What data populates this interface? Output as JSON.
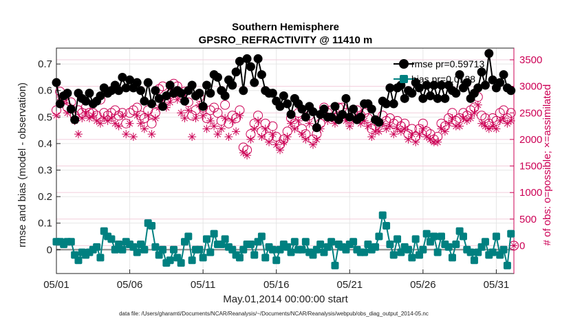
{
  "chart_data": {
    "type": "line",
    "title": [
      "Southern Hemisphere",
      "GPSRO_REFRACTIVITY @ 11410 m"
    ],
    "xlabel": "May.01,2014 00:00:00 start",
    "ylabel": "rmse and bias (model - observation)",
    "ylabel_right": "# of obs: o=possible; ×=assimilated",
    "xlim": [
      1,
      32.2
    ],
    "ylim": [
      -0.09,
      0.76
    ],
    "ylim_right": [
      -525,
      3720
    ],
    "x_ticks": [
      1,
      6,
      11,
      16,
      21,
      26,
      31
    ],
    "x_tick_labels": [
      "05/01",
      "05/06",
      "05/11",
      "05/16",
      "05/21",
      "05/26",
      "05/31"
    ],
    "y_ticks": [
      0,
      0.1,
      0.2,
      0.3,
      0.4,
      0.5,
      0.6,
      0.7
    ],
    "y_tick_labels": [
      "0",
      "0.1",
      "0.2",
      "0.3",
      "0.4",
      "0.5",
      "0.6",
      "0.7"
    ],
    "y2_ticks": [
      0,
      500,
      1000,
      1500,
      2000,
      2500,
      3000,
      3500
    ],
    "y2_tick_labels": [
      "0",
      "500",
      "1000",
      "1500",
      "2000",
      "2500",
      "3000",
      "3500"
    ],
    "grid": true,
    "legend": {
      "position": "top-right",
      "entries": [
        "rmse pr=0.59713",
        "bias pr=0.0128"
      ]
    },
    "colors": {
      "rmse": "#000000",
      "bias": "#008080",
      "obs": "#cc0055",
      "zero_line": "#999999"
    },
    "series": [
      {
        "name": "rmse pr=0.59713",
        "axis": "left",
        "x": [
          1.0,
          1.25,
          1.5,
          1.75,
          2.0,
          2.25,
          2.5,
          2.75,
          3.0,
          3.25,
          3.5,
          3.75,
          4.0,
          4.25,
          4.5,
          4.75,
          5.0,
          5.25,
          5.5,
          5.75,
          6.0,
          6.25,
          6.5,
          6.75,
          7.0,
          7.25,
          7.5,
          7.75,
          8.0,
          8.25,
          8.5,
          8.75,
          9.0,
          9.25,
          9.5,
          9.75,
          10.0,
          10.25,
          10.5,
          10.75,
          11.0,
          11.25,
          11.5,
          11.75,
          12.0,
          12.25,
          12.5,
          12.75,
          13.0,
          13.25,
          13.5,
          13.75,
          14.0,
          14.25,
          14.5,
          14.75,
          15.0,
          15.25,
          15.5,
          15.75,
          16.0,
          16.25,
          16.5,
          16.75,
          17.0,
          17.25,
          17.5,
          17.75,
          18.0,
          18.25,
          18.5,
          18.75,
          19.0,
          19.25,
          19.5,
          19.75,
          20.0,
          20.25,
          20.5,
          20.75,
          21.0,
          21.25,
          21.5,
          21.75,
          22.0,
          22.25,
          22.5,
          22.75,
          23.0,
          23.25,
          23.5,
          23.75,
          24.0,
          24.25,
          24.5,
          24.75,
          25.0,
          25.25,
          25.5,
          25.75,
          26.0,
          26.25,
          26.5,
          26.75,
          27.0,
          27.25,
          27.5,
          27.75,
          28.0,
          28.25,
          28.5,
          28.75,
          29.0,
          29.25,
          29.5,
          29.75,
          30.0,
          30.25,
          30.5,
          30.75,
          31.0,
          31.25,
          31.5,
          31.75,
          32.0
        ],
        "values": [
          0.63,
          0.55,
          0.58,
          0.59,
          0.53,
          0.49,
          0.59,
          0.57,
          0.56,
          0.59,
          0.55,
          0.56,
          0.58,
          0.61,
          0.59,
          0.6,
          0.62,
          0.6,
          0.65,
          0.61,
          0.64,
          0.61,
          0.63,
          0.6,
          0.56,
          0.63,
          0.55,
          0.6,
          0.57,
          0.54,
          0.58,
          0.62,
          0.59,
          0.6,
          0.59,
          0.56,
          0.6,
          0.62,
          0.58,
          0.59,
          0.54,
          0.62,
          0.59,
          0.66,
          0.65,
          0.6,
          0.58,
          0.64,
          0.62,
          0.67,
          0.71,
          0.6,
          0.72,
          0.69,
          0.63,
          0.72,
          0.66,
          0.6,
          0.59,
          0.59,
          0.56,
          0.54,
          0.58,
          0.55,
          0.51,
          0.57,
          0.55,
          0.53,
          0.5,
          0.54,
          0.52,
          0.46,
          0.51,
          0.53,
          0.5,
          0.5,
          0.54,
          0.49,
          0.51,
          0.57,
          0.5,
          0.53,
          0.49,
          0.5,
          0.55,
          0.55,
          0.53,
          0.49,
          0.48,
          0.56,
          0.55,
          0.61,
          0.55,
          0.61,
          0.62,
          0.57,
          0.6,
          0.59,
          0.63,
          0.61,
          0.57,
          0.62,
          0.58,
          0.62,
          0.57,
          0.62,
          0.57,
          0.62,
          0.6,
          0.59,
          0.66,
          0.61,
          0.63,
          0.57,
          0.59,
          0.61,
          0.67,
          0.62,
          0.74,
          0.64,
          0.61,
          0.63,
          0.66,
          0.61,
          0.6
        ]
      },
      {
        "name": "bias pr=0.0128",
        "axis": "left",
        "x": [
          1.0,
          1.25,
          1.5,
          1.75,
          2.0,
          2.25,
          2.5,
          2.75,
          3.0,
          3.25,
          3.5,
          3.75,
          4.0,
          4.25,
          4.5,
          4.75,
          5.0,
          5.25,
          5.5,
          5.75,
          6.0,
          6.25,
          6.5,
          6.75,
          7.0,
          7.25,
          7.5,
          7.75,
          8.0,
          8.25,
          8.5,
          8.75,
          9.0,
          9.25,
          9.5,
          9.75,
          10.0,
          10.25,
          10.5,
          10.75,
          11.0,
          11.25,
          11.5,
          11.75,
          12.0,
          12.25,
          12.5,
          12.75,
          13.0,
          13.25,
          13.5,
          13.75,
          14.0,
          14.25,
          14.5,
          14.75,
          15.0,
          15.25,
          15.5,
          15.75,
          16.0,
          16.25,
          16.5,
          16.75,
          17.0,
          17.25,
          17.5,
          17.75,
          18.0,
          18.25,
          18.5,
          18.75,
          19.0,
          19.25,
          19.5,
          19.75,
          20.0,
          20.25,
          20.5,
          20.75,
          21.0,
          21.25,
          21.5,
          21.75,
          22.0,
          22.25,
          22.5,
          22.75,
          23.0,
          23.25,
          23.5,
          23.75,
          24.0,
          24.25,
          24.5,
          24.75,
          25.0,
          25.25,
          25.5,
          25.75,
          26.0,
          26.25,
          26.5,
          26.75,
          27.0,
          27.25,
          27.5,
          27.75,
          28.0,
          28.25,
          28.5,
          28.75,
          29.0,
          29.25,
          29.5,
          29.75,
          30.0,
          30.25,
          30.5,
          30.75,
          31.0,
          31.25,
          31.5,
          31.75,
          32.0
        ],
        "values": [
          0.03,
          0.03,
          0.02,
          0.03,
          0.03,
          -0.02,
          -0.04,
          -0.01,
          -0.02,
          -0.01,
          0.0,
          0.01,
          -0.03,
          0.07,
          0.05,
          0.04,
          0.0,
          0.02,
          0.0,
          0.03,
          0.02,
          0.01,
          -0.01,
          0.02,
          0.0,
          0.1,
          0.09,
          0.01,
          -0.02,
          0.0,
          -0.05,
          -0.04,
          0.0,
          -0.03,
          -0.05,
          0.03,
          0.05,
          -0.04,
          0.0,
          0.0,
          -0.03,
          0.04,
          -0.01,
          0.06,
          0.02,
          0.02,
          0.04,
          0.01,
          0.0,
          -0.02,
          -0.03,
          0.0,
          0.02,
          0.02,
          -0.02,
          0.03,
          0.05,
          -0.03,
          0.01,
          0.0,
          -0.04,
          0.0,
          0.02,
          0.01,
          -0.01,
          0.03,
          0.0,
          0.0,
          0.03,
          -0.01,
          -0.02,
          0.0,
          0.02,
          -0.01,
          0.01,
          0.03,
          -0.06,
          0.02,
          0.01,
          0.0,
          0.02,
          0.03,
          0.0,
          -0.01,
          -0.01,
          0.02,
          0.0,
          0.01,
          0.05,
          0.13,
          0.09,
          0.02,
          -0.02,
          0.04,
          -0.01,
          0.01,
          0.0,
          -0.03,
          0.04,
          -0.02,
          0.0,
          0.06,
          0.03,
          0.05,
          -0.01,
          0.05,
          0.02,
          0.01,
          -0.03,
          0.02,
          0.07,
          0.05,
          0.0,
          -0.01,
          -0.04,
          -0.01,
          0.01,
          0.03,
          -0.02,
          -0.01,
          0.05,
          -0.02,
          0.0,
          -0.06,
          0.06
        ]
      },
      {
        "name": "possible",
        "axis": "right",
        "marker": "circle",
        "x": [
          1.0,
          1.25,
          1.5,
          1.75,
          2.0,
          2.25,
          2.5,
          2.75,
          3.0,
          3.25,
          3.5,
          3.75,
          4.0,
          4.25,
          4.5,
          4.75,
          5.0,
          5.25,
          5.5,
          5.75,
          6.0,
          6.25,
          6.5,
          6.75,
          7.0,
          7.25,
          7.5,
          7.75,
          8.0,
          8.25,
          8.5,
          8.75,
          9.0,
          9.25,
          9.5,
          9.75,
          10.0,
          10.25,
          10.5,
          10.75,
          11.0,
          11.25,
          11.5,
          11.75,
          12.0,
          12.25,
          12.5,
          12.75,
          13.0,
          13.25,
          13.5,
          13.75,
          14.0,
          14.25,
          14.5,
          14.75,
          15.0,
          15.25,
          15.5,
          15.75,
          16.0,
          16.25,
          16.5,
          16.75,
          17.0,
          17.25,
          17.5,
          17.75,
          18.0,
          18.25,
          18.5,
          18.75,
          19.0,
          19.25,
          19.5,
          19.75,
          20.0,
          20.25,
          20.5,
          20.75,
          21.0,
          21.25,
          21.5,
          21.75,
          22.0,
          22.25,
          22.5,
          22.75,
          23.0,
          23.25,
          23.5,
          23.75,
          24.0,
          24.25,
          24.5,
          24.75,
          25.0,
          25.25,
          25.5,
          25.75,
          26.0,
          26.25,
          26.5,
          26.75,
          27.0,
          27.25,
          27.5,
          27.75,
          28.0,
          28.25,
          28.5,
          28.75,
          29.0,
          29.25,
          29.5,
          29.75,
          30.0,
          30.25,
          30.5,
          30.75,
          31.0,
          31.25,
          31.5,
          31.75,
          32.0
        ],
        "values": [
          2550,
          2900,
          2800,
          2600,
          2700,
          2450,
          2550,
          2500,
          2600,
          2500,
          2500,
          2450,
          2750,
          2500,
          2450,
          2500,
          2550,
          2450,
          2500,
          2300,
          2500,
          2550,
          2600,
          2450,
          2400,
          2550,
          2300,
          2500,
          2950,
          3000,
          2750,
          2850,
          3050,
          3000,
          2850,
          2900,
          2700,
          2450,
          2550,
          2800,
          2600,
          2400,
          2550,
          2600,
          2500,
          2350,
          2650,
          2300,
          2450,
          2400,
          2550,
          1850,
          1800,
          2100,
          2300,
          2450,
          2150,
          2300,
          2050,
          2250,
          2050,
          1900,
          2000,
          2150,
          2400,
          2300,
          2500,
          2200,
          2100,
          2450,
          2000,
          2100,
          2300,
          2600,
          2500,
          2550,
          2400,
          2600,
          2600,
          2500,
          2400,
          2500,
          2550,
          2450,
          2500,
          2400,
          2200,
          2250,
          2300,
          2450,
          2350,
          2400,
          2300,
          2350,
          2250,
          2300,
          2100,
          2200,
          2050,
          2200,
          2300,
          2150,
          2100,
          2000,
          2050,
          2300,
          2250,
          2400,
          2500,
          2350,
          2400,
          2500,
          2450,
          2550,
          2600,
          2800,
          2450,
          2400,
          2300,
          2400,
          2350,
          2500,
          2550,
          2400,
          2500
        ]
      },
      {
        "name": "assimilated",
        "axis": "right",
        "marker": "asterisk",
        "x": [
          1.0,
          1.25,
          1.5,
          1.75,
          2.0,
          2.25,
          2.5,
          2.75,
          3.0,
          3.25,
          3.5,
          3.75,
          4.0,
          4.25,
          4.5,
          4.75,
          5.0,
          5.25,
          5.5,
          5.75,
          6.0,
          6.25,
          6.5,
          6.75,
          7.0,
          7.25,
          7.5,
          7.75,
          8.0,
          8.25,
          8.5,
          8.75,
          9.0,
          9.25,
          9.5,
          9.75,
          10.0,
          10.25,
          10.5,
          10.75,
          11.0,
          11.25,
          11.5,
          11.75,
          12.0,
          12.25,
          12.5,
          12.75,
          13.0,
          13.25,
          13.5,
          13.75,
          14.0,
          14.25,
          14.5,
          14.75,
          15.0,
          15.25,
          15.5,
          15.75,
          16.0,
          16.25,
          16.5,
          16.75,
          17.0,
          17.25,
          17.5,
          17.75,
          18.0,
          18.25,
          18.5,
          18.75,
          19.0,
          19.25,
          19.5,
          19.75,
          20.0,
          20.25,
          20.5,
          20.75,
          21.0,
          21.25,
          21.5,
          21.75,
          22.0,
          22.25,
          22.5,
          22.75,
          23.0,
          23.25,
          23.5,
          23.75,
          24.0,
          24.25,
          24.5,
          24.75,
          25.0,
          25.25,
          25.5,
          25.75,
          26.0,
          26.25,
          26.5,
          26.75,
          27.0,
          27.25,
          27.5,
          27.75,
          28.0,
          28.25,
          28.5,
          28.75,
          29.0,
          29.25,
          29.5,
          29.75,
          30.0,
          30.25,
          30.5,
          30.75,
          31.0,
          31.25,
          31.5,
          31.75,
          32.0
        ],
        "values": [
          2450,
          2800,
          2700,
          2500,
          2600,
          2350,
          2100,
          2400,
          2500,
          2400,
          2450,
          2350,
          2300,
          2400,
          2350,
          2400,
          2300,
          2250,
          2450,
          2100,
          2300,
          2050,
          2450,
          2300,
          2200,
          2450,
          2100,
          2400,
          2600,
          2750,
          2600,
          2700,
          2850,
          2750,
          2500,
          2400,
          2550,
          2050,
          2400,
          2650,
          2450,
          2200,
          2350,
          2250,
          2100,
          2200,
          2400,
          2050,
          2350,
          2150,
          2450,
          1750,
          1700,
          2000,
          2200,
          2350,
          2050,
          2200,
          1950,
          2100,
          1900,
          1800,
          1950,
          2050,
          2300,
          2200,
          2350,
          2100,
          2000,
          2300,
          1900,
          2000,
          2200,
          2450,
          2350,
          2400,
          2300,
          2450,
          2450,
          2350,
          2250,
          2350,
          2400,
          2300,
          2350,
          2250,
          2050,
          2150,
          2150,
          2300,
          2200,
          2250,
          2100,
          2200,
          2150,
          2200,
          2000,
          2100,
          1950,
          2100,
          2200,
          2050,
          2000,
          1950,
          1950,
          2200,
          2150,
          2300,
          2400,
          2250,
          2250,
          2400,
          2350,
          2400,
          2500,
          2650,
          2300,
          2250,
          2200,
          2250,
          2200,
          2350,
          2400,
          2300,
          2350
        ]
      }
    ],
    "footnote": "data file: /Users/gharamti/Documents/NCAR/Reanalysis/~/Documents/NCAR/Reanalysis/webpub/obs_diag_output_2014-05.nc"
  }
}
